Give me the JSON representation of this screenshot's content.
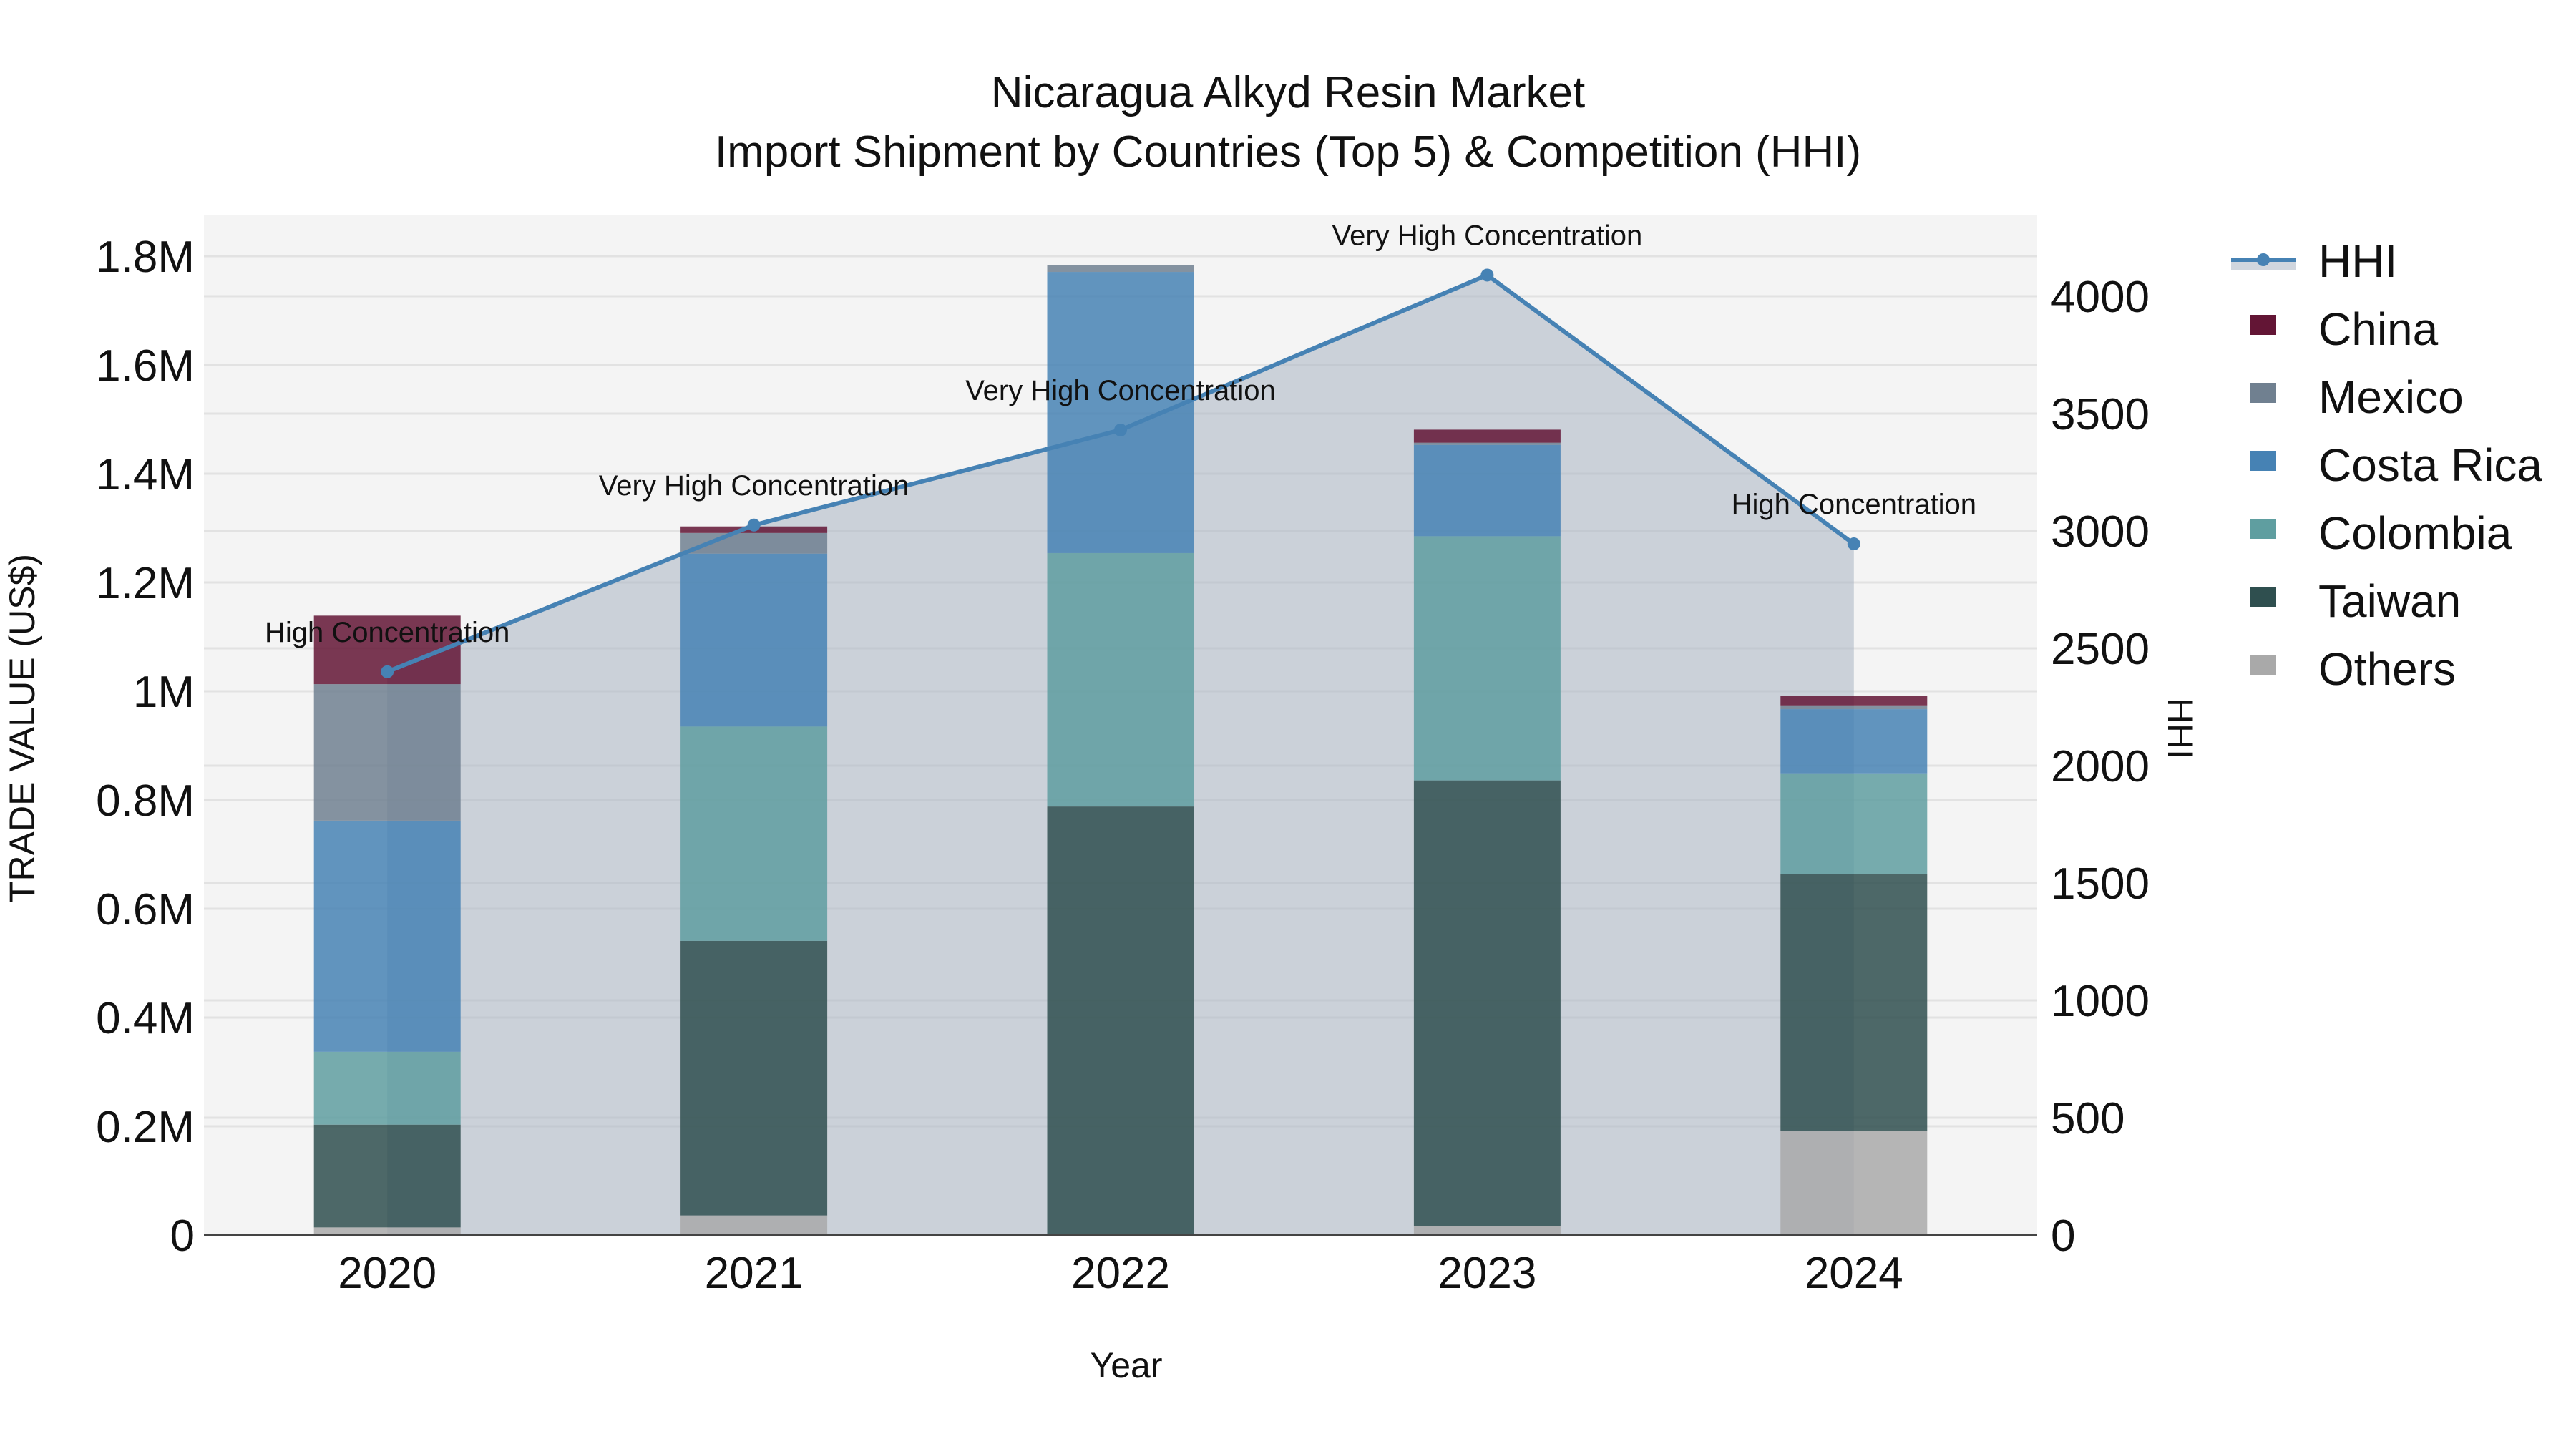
{
  "chart_data": {
    "type": "bar",
    "stacked": true,
    "title": "Nicaragua Alkyd Resin Market",
    "subtitle": "Import Shipment by Countries (Top 5) & Competition (HHI)",
    "xlabel": "Year",
    "ylabel": "TRADE VALUE (US$)",
    "y2label": "HHI",
    "categories": [
      "2020",
      "2021",
      "2022",
      "2023",
      "2024"
    ],
    "ylim": [
      0,
      1.88
    ],
    "y_unit": "M",
    "yticks": [
      0,
      0.2,
      0.4,
      0.6,
      0.8,
      1.0,
      1.2,
      1.4,
      1.6,
      1.8
    ],
    "ytick_labels": [
      "0",
      "0.2M",
      "0.4M",
      "0.6M",
      "0.8M",
      "1M",
      "1.2M",
      "1.4M",
      "1.6M",
      "1.8M"
    ],
    "y2lim": [
      0,
      4330
    ],
    "y2ticks": [
      0,
      500,
      1000,
      1500,
      2000,
      2500,
      3000,
      3500,
      4000
    ],
    "series": [
      {
        "name": "Others",
        "color": "#A9A9A9",
        "values": [
          0.014,
          0.036,
          0.0,
          0.017,
          0.191
        ]
      },
      {
        "name": "Taiwan",
        "color": "#2F4F4F",
        "values": [
          0.189,
          0.505,
          0.788,
          0.819,
          0.473
        ]
      },
      {
        "name": "Colombia",
        "color": "#5F9EA0",
        "values": [
          0.134,
          0.394,
          0.466,
          0.449,
          0.185
        ]
      },
      {
        "name": "Costa Rica",
        "color": "#4682B4",
        "values": [
          0.425,
          0.318,
          0.517,
          0.168,
          0.118
        ]
      },
      {
        "name": "Mexico",
        "color": "#708090",
        "values": [
          0.251,
          0.038,
          0.012,
          0.004,
          0.007
        ]
      },
      {
        "name": "China",
        "color": "#631535",
        "values": [
          0.126,
          0.012,
          0.0,
          0.024,
          0.017
        ]
      }
    ],
    "line_series": {
      "name": "HHI",
      "axis": "y2",
      "color": "#4682B4",
      "fill": "rgba(160,170,185,0.5)",
      "values": [
        2400,
        3025,
        3430,
        4090,
        2945
      ],
      "annotations": [
        "High Concentration",
        "Very High Concentration",
        "Very High Concentration",
        "Very High Concentration",
        "High Concentration"
      ]
    },
    "legend": {
      "position": "right",
      "items": [
        "HHI",
        "China",
        "Mexico",
        "Costa Rica",
        "Colombia",
        "Taiwan",
        "Others"
      ]
    },
    "grid": true
  }
}
